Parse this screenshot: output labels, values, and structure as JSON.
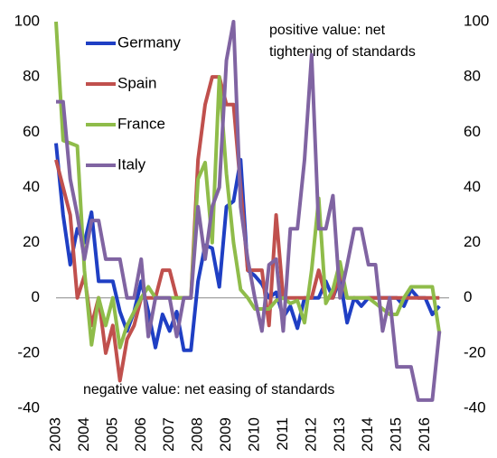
{
  "chart_data": {
    "type": "line",
    "annotations": [
      "positive value: net",
      "tightening of standards",
      "negative value: net easing of standards"
    ],
    "categories": [
      "2003",
      null,
      null,
      null,
      "2004",
      null,
      null,
      null,
      "2005",
      null,
      null,
      null,
      "2006",
      null,
      null,
      null,
      "2007",
      null,
      null,
      null,
      "2008",
      null,
      null,
      null,
      "2009",
      null,
      null,
      null,
      "2010",
      null,
      null,
      null,
      "2011",
      null,
      null,
      null,
      "2012",
      null,
      null,
      null,
      "2013",
      null,
      null,
      null,
      "2014",
      null,
      null,
      null,
      "2015",
      null,
      null,
      null,
      "2016",
      null,
      null
    ],
    "series": [
      {
        "name": "Germany",
        "color": "#1f3fc4",
        "values": [
          56,
          30,
          12,
          25,
          20,
          31,
          6,
          6,
          6,
          -5,
          -12,
          -5,
          6,
          -5,
          -18,
          -6,
          -12,
          -5,
          -19,
          -19,
          6,
          19,
          18,
          4,
          33,
          35,
          50,
          10,
          8,
          5,
          0,
          2,
          -7,
          -3,
          -11,
          0,
          0,
          0,
          6,
          0,
          7,
          -9,
          0,
          -3,
          0,
          0,
          0,
          0,
          0,
          -3,
          3,
          0,
          0,
          -6,
          -3
        ]
      },
      {
        "name": "Spain",
        "color": "#c0504d",
        "values": [
          50,
          40,
          30,
          0,
          8,
          -10,
          0,
          -20,
          -10,
          -30,
          -15,
          -10,
          0,
          0,
          0,
          10,
          10,
          0,
          0,
          0,
          50,
          70,
          80,
          80,
          70,
          70,
          40,
          10,
          10,
          10,
          -10,
          30,
          0,
          0,
          0,
          0,
          0,
          10,
          0,
          0,
          10,
          0,
          0,
          0,
          0,
          0,
          0,
          0,
          0,
          0,
          0,
          0,
          0,
          0,
          0
        ]
      },
      {
        "name": "France",
        "color": "#8fbc4a",
        "values": [
          100,
          57,
          56,
          55,
          10,
          -17,
          0,
          -10,
          0,
          -18,
          -10,
          -5,
          0,
          4,
          0,
          0,
          0,
          0,
          0,
          0,
          43,
          49,
          20,
          80,
          45,
          20,
          3,
          0,
          -4,
          -4,
          -4,
          -1,
          0,
          -2,
          -1,
          -9,
          10,
          36,
          -2,
          3,
          13,
          0,
          0,
          0,
          0,
          -2,
          -4,
          -6,
          -6,
          0,
          4,
          4,
          4,
          4,
          -13
        ]
      },
      {
        "name": "Italy",
        "color": "#8064a2",
        "values": [
          71,
          71,
          43,
          30,
          14,
          28,
          28,
          14,
          14,
          14,
          0,
          0,
          14,
          -14,
          0,
          0,
          0,
          -14,
          0,
          0,
          33,
          14,
          33,
          40,
          86,
          100,
          33,
          14,
          0,
          -12,
          12,
          14,
          -12,
          25,
          25,
          50,
          88,
          25,
          25,
          37,
          0,
          12,
          25,
          25,
          12,
          12,
          -12,
          0,
          -25,
          -25,
          -25,
          -37,
          -37,
          -37,
          -12
        ]
      }
    ],
    "ylim": [
      -40,
      100
    ],
    "yticks": [
      -40,
      -20,
      0,
      20,
      40,
      60,
      80,
      100
    ],
    "y2lim": [
      -40,
      100
    ],
    "y2ticks": [
      -40,
      -20,
      0,
      20,
      40,
      60,
      80,
      100
    ],
    "legend": "upper left"
  }
}
